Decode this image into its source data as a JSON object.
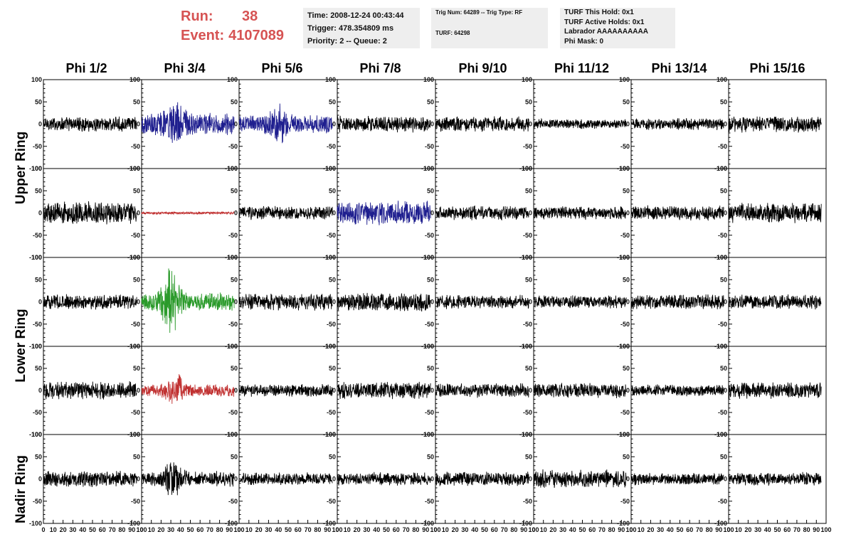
{
  "header": {
    "run_label": "Run:",
    "run_value": "38",
    "event_label": "Event:",
    "event_value": "4107089",
    "time_line": "Time: 2008-12-24 00:43:44",
    "trigger_line": "Trigger: 478.354809 ms",
    "priority_line": "Priority: 2 -- Queue: 2",
    "trig_line": "Trig Num: 64289 -- Trig Type: RF",
    "turf_line": "TURF: 64298",
    "turf_this_hold": "TURF This Hold: 0x1",
    "turf_active_holds": "TURF Active Holds: 0x1",
    "labrador": "Labrador AAAAAAAAAA",
    "phi_mask": "Phi Mask: 0"
  },
  "columns": [
    "Phi 1/2",
    "Phi 3/4",
    "Phi 5/6",
    "Phi 7/8",
    "Phi 9/10",
    "Phi 11/12",
    "Phi 13/14",
    "Phi 15/16"
  ],
  "ring_labels": {
    "upper": "Upper Ring",
    "lower": "Lower Ring",
    "nadir": "Nadir Ring"
  },
  "colors": {
    "default_trace": "#000000",
    "blue": "#1f1f8f",
    "red": "#c03030",
    "green": "#2a9a2a",
    "header_accent": "#d65353",
    "box_bg": "#eeeeee"
  },
  "chart_data": {
    "type": "line",
    "description": "5 rows x 8 columns grid of waveform traces (amplitude vs sample)",
    "xlim": [
      0,
      100
    ],
    "ylim": [
      -100,
      100
    ],
    "x_ticks": [
      "0",
      "10",
      "20",
      "30",
      "40",
      "50",
      "60",
      "70",
      "80",
      "90",
      "100"
    ],
    "y_ticks": [
      "100",
      "50",
      "0",
      "-50",
      "-100"
    ],
    "sample_range": [
      0,
      95
    ],
    "rows": [
      {
        "ring": "upper",
        "traces": [
          {
            "amplitude": 18,
            "color": "default_trace"
          },
          {
            "amplitude": 28,
            "color": "blue",
            "burst_center": 35,
            "burst_amplitude": 60
          },
          {
            "amplitude": 22,
            "color": "blue",
            "burst_center": 40,
            "burst_amplitude": 55
          },
          {
            "amplitude": 20,
            "color": "default_trace"
          },
          {
            "amplitude": 18,
            "color": "default_trace"
          },
          {
            "amplitude": 12,
            "color": "default_trace"
          },
          {
            "amplitude": 14,
            "color": "default_trace"
          },
          {
            "amplitude": 20,
            "color": "default_trace"
          }
        ]
      },
      {
        "ring": "upper",
        "traces": [
          {
            "amplitude": 28,
            "color": "default_trace"
          },
          {
            "amplitude": 3,
            "color": "red"
          },
          {
            "amplitude": 17,
            "color": "default_trace"
          },
          {
            "amplitude": 30,
            "color": "blue"
          },
          {
            "amplitude": 17,
            "color": "default_trace"
          },
          {
            "amplitude": 16,
            "color": "default_trace"
          },
          {
            "amplitude": 18,
            "color": "default_trace"
          },
          {
            "amplitude": 24,
            "color": "default_trace"
          }
        ]
      },
      {
        "ring": "lower",
        "traces": [
          {
            "amplitude": 18,
            "color": "default_trace"
          },
          {
            "amplitude": 22,
            "color": "green",
            "burst_center": 30,
            "burst_amplitude": 85
          },
          {
            "amplitude": 20,
            "color": "default_trace"
          },
          {
            "amplitude": 22,
            "color": "default_trace"
          },
          {
            "amplitude": 17,
            "color": "default_trace"
          },
          {
            "amplitude": 16,
            "color": "default_trace"
          },
          {
            "amplitude": 18,
            "color": "default_trace"
          },
          {
            "amplitude": 18,
            "color": "default_trace"
          }
        ]
      },
      {
        "ring": "lower",
        "traces": [
          {
            "amplitude": 22,
            "color": "default_trace"
          },
          {
            "amplitude": 15,
            "color": "red",
            "burst_center": 35,
            "burst_amplitude": 45
          },
          {
            "amplitude": 15,
            "color": "default_trace"
          },
          {
            "amplitude": 20,
            "color": "default_trace"
          },
          {
            "amplitude": 17,
            "color": "default_trace"
          },
          {
            "amplitude": 18,
            "color": "default_trace"
          },
          {
            "amplitude": 14,
            "color": "default_trace"
          },
          {
            "amplitude": 20,
            "color": "default_trace"
          }
        ]
      },
      {
        "ring": "nadir",
        "traces": [
          {
            "amplitude": 20,
            "color": "default_trace"
          },
          {
            "amplitude": 18,
            "color": "default_trace",
            "burst_center": 32,
            "burst_amplitude": 45
          },
          {
            "amplitude": 15,
            "color": "default_trace"
          },
          {
            "amplitude": 16,
            "color": "default_trace"
          },
          {
            "amplitude": 17,
            "color": "default_trace"
          },
          {
            "amplitude": 22,
            "color": "default_trace"
          },
          {
            "amplitude": 15,
            "color": "default_trace"
          },
          {
            "amplitude": 16,
            "color": "default_trace"
          }
        ]
      }
    ]
  }
}
